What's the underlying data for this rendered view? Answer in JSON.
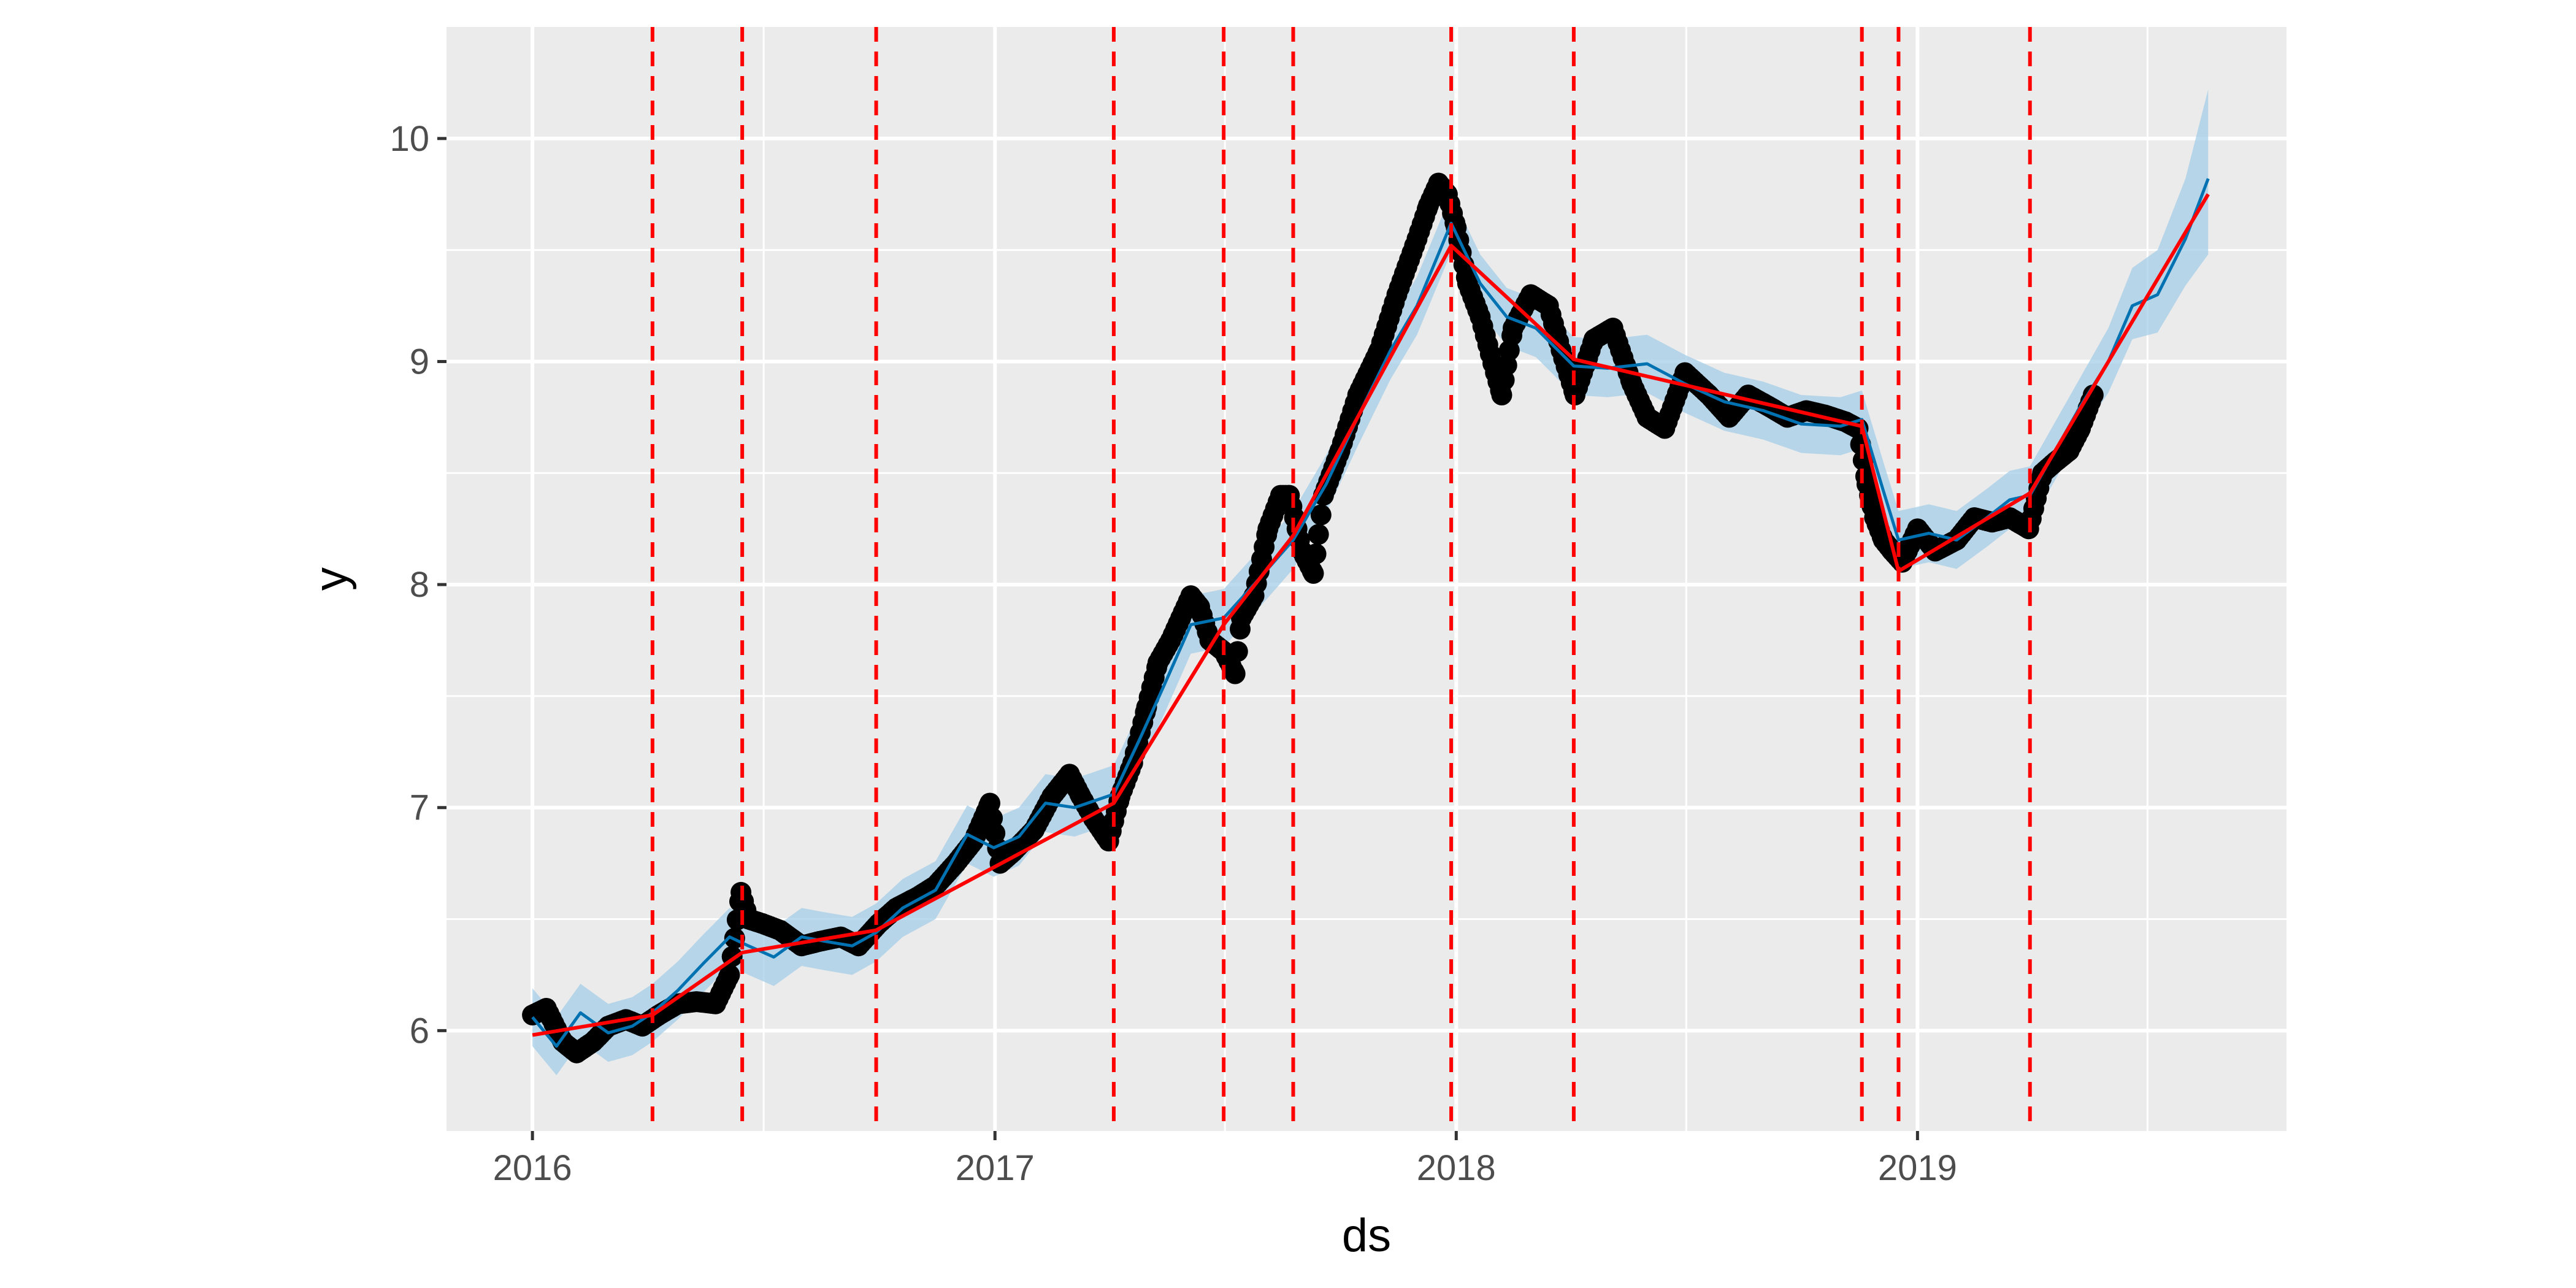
{
  "chart_data": {
    "type": "line",
    "title": "",
    "xlabel": "ds",
    "ylabel": "y",
    "xlim": [
      "2015-10-25",
      "2019-10-20"
    ],
    "ylim": [
      5.55,
      10.5
    ],
    "x_ticks": [
      {
        "date": "2016-01-01",
        "label": "2016"
      },
      {
        "date": "2017-01-01",
        "label": "2017"
      },
      {
        "date": "2018-01-01",
        "label": "2018"
      },
      {
        "date": "2019-01-01",
        "label": "2019"
      }
    ],
    "y_ticks": [
      {
        "value": 6,
        "label": "6"
      },
      {
        "value": 7,
        "label": "7"
      },
      {
        "value": 8,
        "label": "8"
      },
      {
        "value": 9,
        "label": "9"
      },
      {
        "value": 10,
        "label": "10"
      }
    ],
    "grid": true,
    "background_color": "#ebebeb",
    "colors": {
      "points": "#000000",
      "forecast": "#0072b2",
      "interval": "#a6cde8",
      "trend": "#ff0000",
      "changepoints": "#ff0000"
    },
    "changepoints": [
      "2016-04-05",
      "2016-06-15",
      "2016-09-29",
      "2017-04-05",
      "2017-07-01",
      "2017-08-25",
      "2017-12-28",
      "2018-04-04",
      "2018-11-18",
      "2018-12-17",
      "2019-03-31"
    ],
    "trend": {
      "x": [
        "2016-01-01",
        "2016-04-05",
        "2016-06-15",
        "2016-09-29",
        "2017-04-05",
        "2017-07-01",
        "2017-08-25",
        "2017-12-28",
        "2018-04-04",
        "2018-11-18",
        "2018-12-17",
        "2019-03-31",
        "2019-08-19"
      ],
      "y": [
        5.98,
        6.07,
        6.35,
        6.45,
        7.02,
        7.82,
        8.22,
        9.52,
        9.01,
        8.71,
        8.06,
        8.41,
        9.75
      ]
    },
    "forecast": {
      "x": [
        "2016-01-01",
        "2016-01-20",
        "2016-02-08",
        "2016-03-01",
        "2016-03-20",
        "2016-04-05",
        "2016-04-25",
        "2016-05-15",
        "2016-06-05",
        "2016-06-20",
        "2016-07-10",
        "2016-08-01",
        "2016-08-20",
        "2016-09-10",
        "2016-09-29",
        "2016-10-20",
        "2016-11-15",
        "2016-12-10",
        "2016-12-31",
        "2017-01-20",
        "2017-02-10",
        "2017-03-05",
        "2017-04-05",
        "2017-04-25",
        "2017-05-15",
        "2017-06-05",
        "2017-07-01",
        "2017-07-25",
        "2017-08-25",
        "2017-09-20",
        "2017-10-15",
        "2017-11-10",
        "2017-12-01",
        "2017-12-28",
        "2018-01-20",
        "2018-02-10",
        "2018-03-05",
        "2018-04-04",
        "2018-05-01",
        "2018-06-01",
        "2018-07-01",
        "2018-08-01",
        "2018-09-01",
        "2018-10-01",
        "2018-11-01",
        "2018-11-18",
        "2018-12-05",
        "2018-12-17",
        "2019-01-10",
        "2019-02-01",
        "2019-02-25",
        "2019-03-15",
        "2019-03-31",
        "2019-04-20",
        "2019-05-10",
        "2019-06-01",
        "2019-06-20",
        "2019-07-10",
        "2019-08-01",
        "2019-08-19"
      ],
      "y": [
        6.06,
        5.93,
        6.08,
        5.99,
        6.02,
        6.08,
        6.18,
        6.3,
        6.42,
        6.38,
        6.33,
        6.42,
        6.4,
        6.38,
        6.44,
        6.55,
        6.63,
        6.88,
        6.82,
        6.87,
        7.02,
        7.0,
        7.06,
        7.3,
        7.55,
        7.82,
        7.85,
        8.0,
        8.2,
        8.45,
        8.75,
        9.05,
        9.25,
        9.62,
        9.35,
        9.2,
        9.15,
        8.98,
        8.97,
        8.99,
        8.9,
        8.82,
        8.78,
        8.72,
        8.71,
        8.74,
        8.42,
        8.2,
        8.23,
        8.2,
        8.3,
        8.38,
        8.4,
        8.6,
        8.8,
        9.0,
        9.25,
        9.3,
        9.55,
        9.82
      ]
    },
    "uncertainty": {
      "x": [
        "2016-01-01",
        "2016-01-20",
        "2016-02-08",
        "2016-03-01",
        "2016-03-20",
        "2016-04-05",
        "2016-04-25",
        "2016-05-15",
        "2016-06-05",
        "2016-06-20",
        "2016-07-10",
        "2016-08-01",
        "2016-08-20",
        "2016-09-10",
        "2016-09-29",
        "2016-10-20",
        "2016-11-15",
        "2016-12-10",
        "2016-12-31",
        "2017-01-20",
        "2017-02-10",
        "2017-03-05",
        "2017-04-05",
        "2017-04-25",
        "2017-05-15",
        "2017-06-05",
        "2017-07-01",
        "2017-07-25",
        "2017-08-25",
        "2017-09-20",
        "2017-10-15",
        "2017-11-10",
        "2017-12-01",
        "2017-12-28",
        "2018-01-20",
        "2018-02-10",
        "2018-03-05",
        "2018-04-04",
        "2018-05-01",
        "2018-06-01",
        "2018-07-01",
        "2018-08-01",
        "2018-09-01",
        "2018-10-01",
        "2018-11-01",
        "2018-11-18",
        "2018-12-05",
        "2018-12-17",
        "2019-01-10",
        "2019-02-01",
        "2019-02-25",
        "2019-03-15",
        "2019-03-31",
        "2019-04-20",
        "2019-05-10",
        "2019-06-01",
        "2019-06-20",
        "2019-07-10",
        "2019-08-01",
        "2019-08-19"
      ],
      "lower": [
        5.93,
        5.8,
        5.95,
        5.86,
        5.89,
        5.95,
        6.05,
        6.17,
        6.29,
        6.25,
        6.2,
        6.29,
        6.27,
        6.25,
        6.31,
        6.42,
        6.5,
        6.75,
        6.69,
        6.74,
        6.89,
        6.87,
        6.93,
        7.17,
        7.42,
        7.69,
        7.72,
        7.87,
        8.07,
        8.32,
        8.62,
        8.92,
        9.12,
        9.49,
        9.22,
        9.07,
        9.02,
        8.85,
        8.84,
        8.86,
        8.77,
        8.69,
        8.65,
        8.59,
        8.58,
        8.61,
        8.29,
        8.07,
        8.1,
        8.07,
        8.17,
        8.25,
        8.27,
        8.47,
        8.67,
        8.86,
        9.1,
        9.13,
        9.34,
        9.48
      ],
      "upper": [
        6.19,
        6.06,
        6.21,
        6.12,
        6.15,
        6.21,
        6.31,
        6.43,
        6.55,
        6.51,
        6.46,
        6.55,
        6.53,
        6.51,
        6.57,
        6.68,
        6.76,
        7.01,
        6.95,
        7.0,
        7.15,
        7.13,
        7.19,
        7.43,
        7.68,
        7.95,
        7.98,
        8.13,
        8.33,
        8.58,
        8.88,
        9.18,
        9.38,
        9.75,
        9.48,
        9.33,
        9.28,
        9.11,
        9.1,
        9.12,
        9.03,
        8.95,
        8.91,
        8.85,
        8.84,
        8.87,
        8.55,
        8.33,
        8.36,
        8.33,
        8.43,
        8.51,
        8.53,
        8.73,
        8.93,
        9.15,
        9.42,
        9.5,
        9.82,
        10.22
      ]
    },
    "observed": {
      "x": [
        "2016-01-01",
        "2016-01-12",
        "2016-01-25",
        "2016-02-05",
        "2016-02-18",
        "2016-03-01",
        "2016-03-15",
        "2016-03-28",
        "2016-04-10",
        "2016-04-25",
        "2016-05-10",
        "2016-05-25",
        "2016-06-05",
        "2016-06-14",
        "2016-06-20",
        "2016-07-01",
        "2016-07-15",
        "2016-08-01",
        "2016-08-15",
        "2016-09-01",
        "2016-09-15",
        "2016-10-01",
        "2016-10-15",
        "2016-11-01",
        "2016-11-15",
        "2016-12-01",
        "2016-12-15",
        "2016-12-28",
        "2017-01-05",
        "2017-01-15",
        "2017-02-01",
        "2017-02-15",
        "2017-03-01",
        "2017-03-10",
        "2017-03-20",
        "2017-04-01",
        "2017-04-10",
        "2017-04-20",
        "2017-05-01",
        "2017-05-10",
        "2017-05-20",
        "2017-05-28",
        "2017-06-05",
        "2017-06-12",
        "2017-06-20",
        "2017-07-01",
        "2017-07-10",
        "2017-07-15",
        "2017-07-25",
        "2017-08-05",
        "2017-08-15",
        "2017-08-22",
        "2017-09-01",
        "2017-09-10",
        "2017-09-18",
        "2017-10-01",
        "2017-10-15",
        "2017-11-01",
        "2017-11-15",
        "2017-12-01",
        "2017-12-10",
        "2017-12-18",
        "2017-12-25",
        "2018-01-01",
        "2018-01-10",
        "2018-01-20",
        "2018-02-01",
        "2018-02-06",
        "2018-02-15",
        "2018-03-01",
        "2018-03-15",
        "2018-03-25",
        "2018-04-05",
        "2018-04-20",
        "2018-05-05",
        "2018-05-20",
        "2018-06-01",
        "2018-06-15",
        "2018-07-01",
        "2018-07-20",
        "2018-08-05",
        "2018-08-20",
        "2018-09-05",
        "2018-09-20",
        "2018-10-05",
        "2018-10-20",
        "2018-11-05",
        "2018-11-15",
        "2018-11-22",
        "2018-11-28",
        "2018-12-05",
        "2018-12-12",
        "2018-12-20",
        "2019-01-01",
        "2019-01-15",
        "2019-02-01",
        "2019-02-15",
        "2019-03-01",
        "2019-03-15",
        "2019-03-30",
        "2019-04-10",
        "2019-04-20",
        "2019-05-01",
        "2019-05-10",
        "2019-05-20"
      ],
      "y": [
        6.07,
        6.1,
        5.95,
        5.9,
        5.95,
        6.02,
        6.05,
        6.02,
        6.07,
        6.12,
        6.13,
        6.12,
        6.25,
        6.62,
        6.5,
        6.48,
        6.45,
        6.38,
        6.4,
        6.42,
        6.38,
        6.48,
        6.55,
        6.6,
        6.65,
        6.75,
        6.85,
        7.02,
        6.75,
        6.8,
        6.9,
        7.05,
        7.15,
        7.05,
        6.95,
        6.85,
        7.05,
        7.2,
        7.45,
        7.65,
        7.75,
        7.85,
        7.95,
        7.9,
        7.75,
        7.7,
        7.6,
        7.85,
        7.95,
        8.25,
        8.4,
        8.4,
        8.15,
        8.05,
        8.4,
        8.6,
        8.85,
        9.05,
        9.3,
        9.55,
        9.7,
        9.8,
        9.75,
        9.6,
        9.35,
        9.2,
        8.95,
        8.85,
        9.15,
        9.3,
        9.25,
        9.05,
        8.85,
        9.1,
        9.15,
        8.9,
        8.75,
        8.7,
        8.95,
        8.85,
        8.75,
        8.85,
        8.8,
        8.75,
        8.78,
        8.76,
        8.73,
        8.7,
        8.45,
        8.3,
        8.2,
        8.15,
        8.1,
        8.25,
        8.15,
        8.2,
        8.3,
        8.28,
        8.3,
        8.25,
        8.5,
        8.55,
        8.6,
        8.7,
        8.85
      ]
    }
  }
}
